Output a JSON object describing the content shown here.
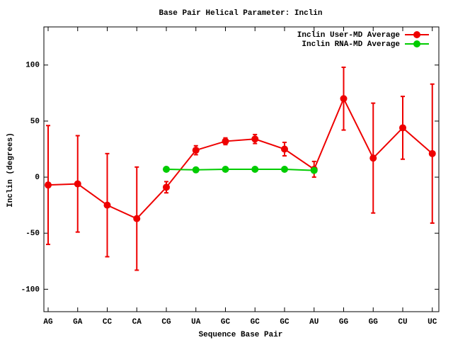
{
  "chart_data": {
    "type": "line",
    "title": "Base Pair Helical Parameter: Inclin",
    "xlabel": "Sequence Base Pair",
    "ylabel": "Inclin (degrees)",
    "categories": [
      "AG",
      "GA",
      "CC",
      "CA",
      "CG",
      "UA",
      "GC",
      "GC",
      "GC",
      "AU",
      "GG",
      "GG",
      "CU",
      "UC"
    ],
    "series": [
      {
        "name": "Inclin User-MD Average",
        "color": "#ee0000",
        "values": [
          -7,
          -6,
          -25,
          -37,
          -9,
          24,
          32,
          34,
          25,
          7,
          70,
          17,
          44,
          21
        ],
        "errors": [
          53,
          43,
          46,
          46,
          5,
          4,
          3,
          4,
          6,
          7,
          28,
          49,
          28,
          62
        ]
      },
      {
        "name": "Inclin RNA-MD Average",
        "color": "#00cc00",
        "values": [
          null,
          null,
          null,
          null,
          7,
          6.5,
          7,
          7,
          7,
          6,
          null,
          null,
          null,
          null
        ]
      }
    ],
    "ylim": [
      -120,
      134
    ],
    "yticks": [
      -100,
      -50,
      0,
      50,
      100
    ],
    "legend": "top-right",
    "grid": false
  }
}
